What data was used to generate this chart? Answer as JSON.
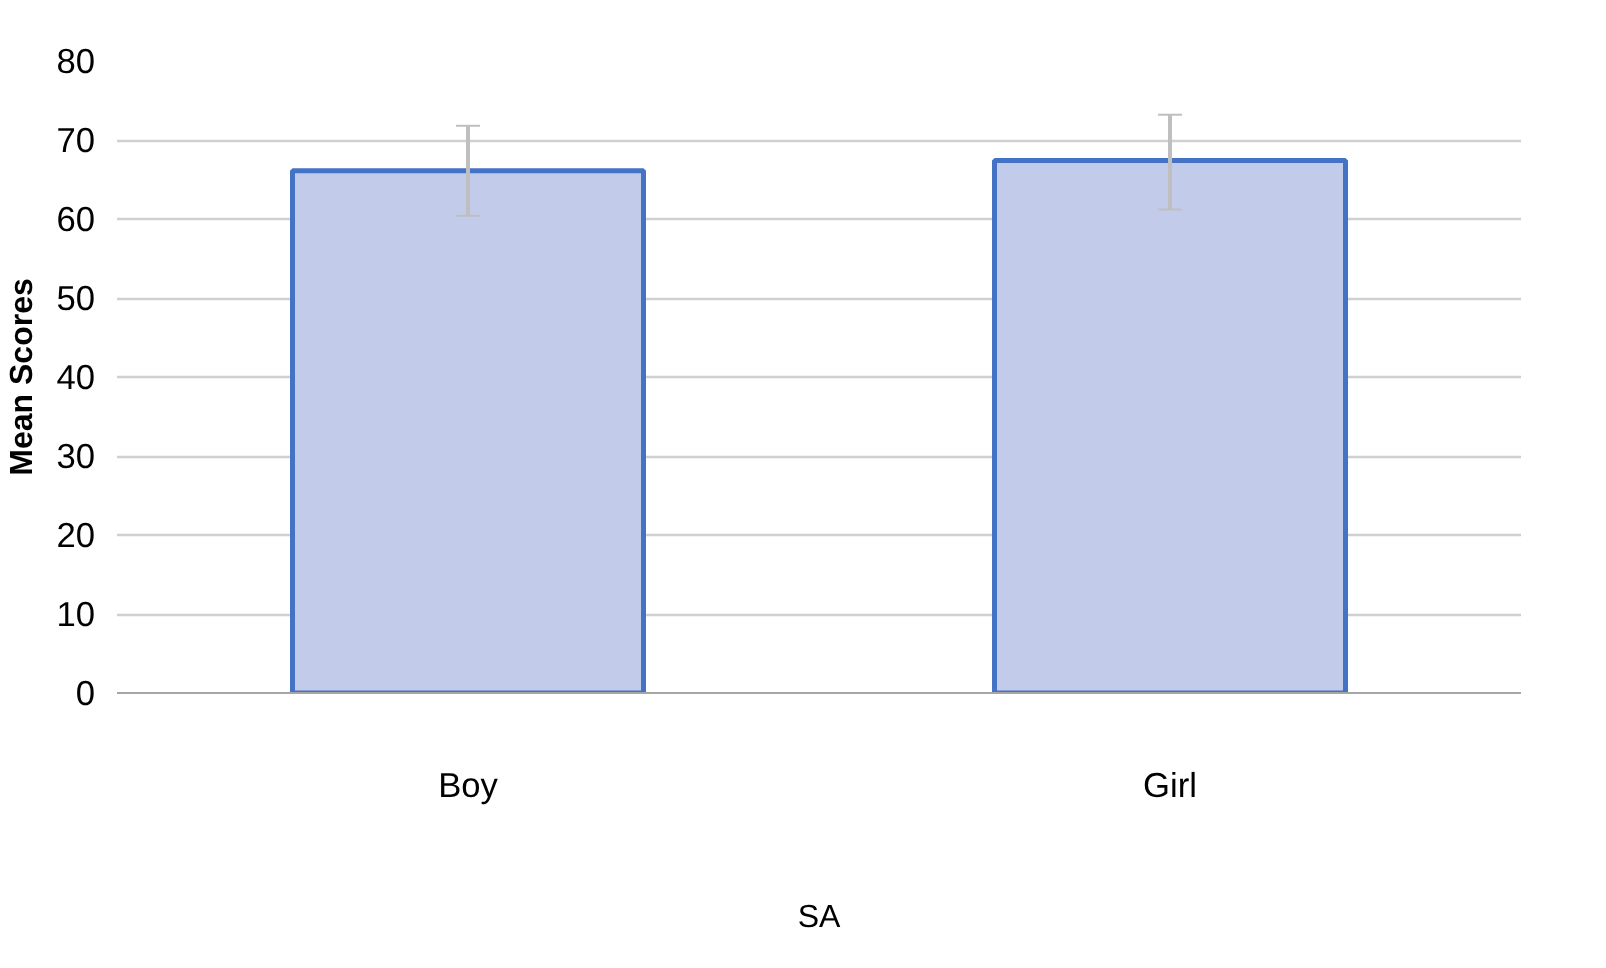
{
  "chart_data": {
    "type": "bar",
    "ylabel": "Mean Scores",
    "xlabel": "SA",
    "categories": [
      "Boy",
      "Girl"
    ],
    "series": [
      {
        "color": "#c3cbea",
        "values": [
          66.1,
          67.4
        ],
        "errors": [
          [
            60.4,
            71.8
          ],
          [
            61.2,
            73.2
          ]
        ]
      }
    ],
    "ylim": [
      0,
      80
    ],
    "yticks": [
      0,
      10,
      20,
      30,
      40,
      50,
      60,
      70,
      80
    ],
    "grid": "y"
  }
}
